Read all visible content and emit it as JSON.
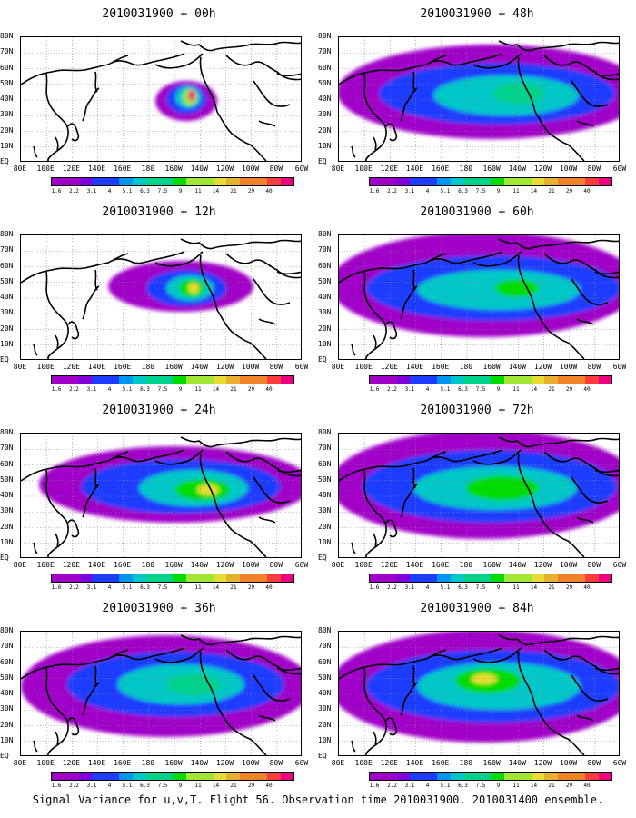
{
  "figure": {
    "caption": "Signal Variance for u,v,T. Flight 56. Observation time 2010031900. 2010031400 ensemble."
  },
  "map": {
    "lat_labels": [
      "80N",
      "70N",
      "60N",
      "50N",
      "40N",
      "30N",
      "20N",
      "10N",
      "EQ"
    ],
    "lon_labels": [
      "80E",
      "100E",
      "120E",
      "140E",
      "160E",
      "180",
      "160W",
      "140W",
      "120W",
      "100W",
      "80W",
      "60W"
    ]
  },
  "colorbar": {
    "labels": [
      "1.6",
      "2.2",
      "3.1",
      "4",
      "5.1",
      "6.3",
      "7.5",
      "9",
      "11",
      "14",
      "21",
      "29",
      "40"
    ],
    "colors": [
      "#a000c8",
      "#8200dc",
      "#1e3cff",
      "#0096f0",
      "#00c8c8",
      "#00d28c",
      "#00dc00",
      "#a0e632",
      "#e6dc32",
      "#e6af2d",
      "#f08228",
      "#fa3c3c",
      "#f00082"
    ]
  },
  "panels": [
    {
      "title": "2010031900 + 00h",
      "lead_hours": 0
    },
    {
      "title": "2010031900 + 48h",
      "lead_hours": 48
    },
    {
      "title": "2010031900 + 12h",
      "lead_hours": 12
    },
    {
      "title": "2010031900 + 60h",
      "lead_hours": 60
    },
    {
      "title": "2010031900 + 24h",
      "lead_hours": 24
    },
    {
      "title": "2010031900 + 72h",
      "lead_hours": 72
    },
    {
      "title": "2010031900 + 36h",
      "lead_hours": 36
    },
    {
      "title": "2010031900 + 84h",
      "lead_hours": 84
    }
  ]
}
